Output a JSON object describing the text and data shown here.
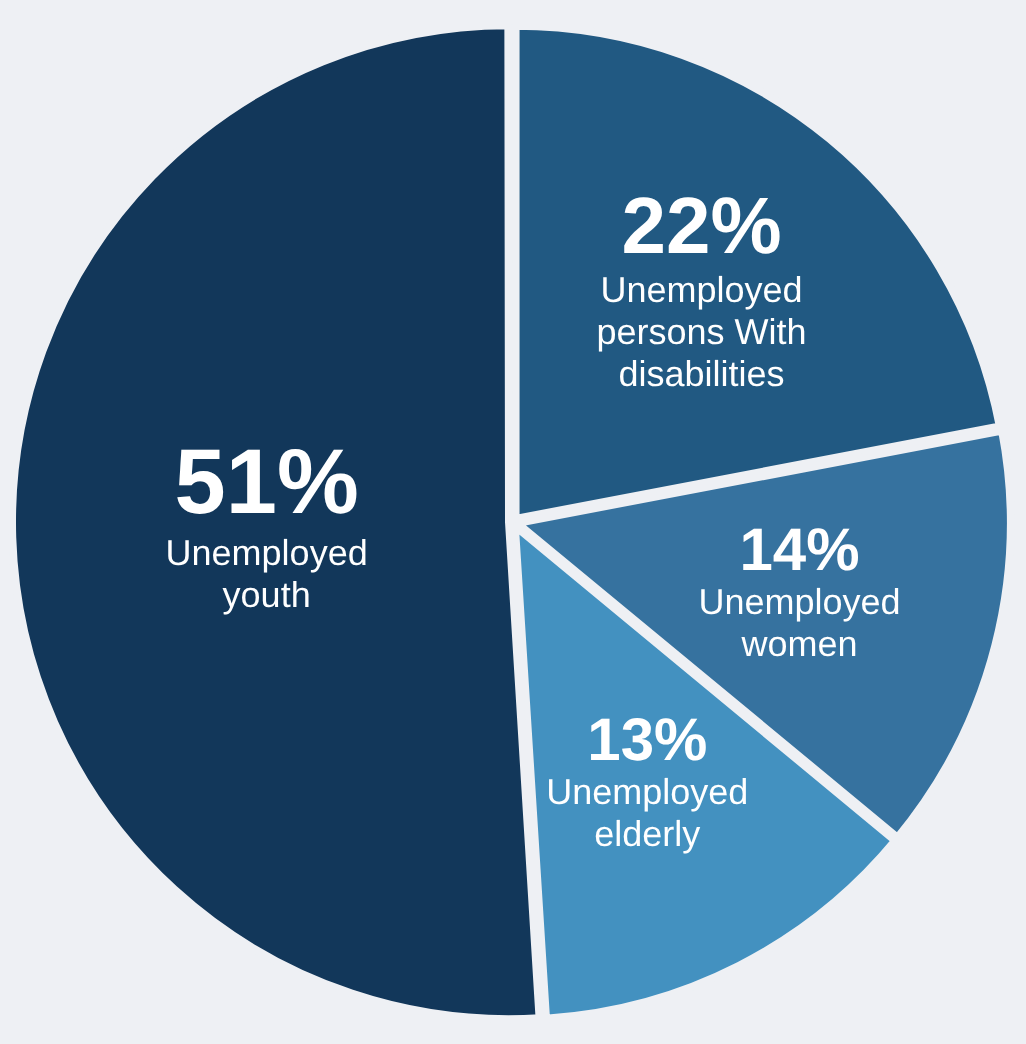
{
  "chart_data": {
    "type": "pie",
    "categories": [
      "Unemployed persons With disabilities",
      "Unemployed women",
      "Unemployed elderly",
      "Unemployed youth"
    ],
    "values": [
      22,
      14,
      13,
      51
    ],
    "value_labels": [
      "22%",
      "14%",
      "13%",
      "51%"
    ],
    "colors": [
      "#215982",
      "#36729f",
      "#4391c0",
      "#12375a"
    ],
    "legend": false
  }
}
